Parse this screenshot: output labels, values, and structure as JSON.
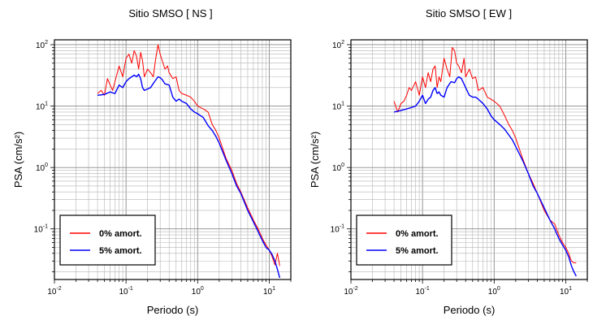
{
  "chart_data": [
    {
      "type": "line",
      "title": "Sitio SMSO [ NS ]",
      "xlabel": "Periodo (s)",
      "ylabel": "PSA (cm/s²)",
      "xscale": "log",
      "yscale": "log",
      "xlim": [
        0.01,
        20
      ],
      "ylim": [
        0.015,
        120
      ],
      "grid": true,
      "legend_position": "bottom-left",
      "x_tick_labels": [
        {
          "value": 0.01,
          "base": "10",
          "exp": "-2"
        },
        {
          "value": 0.1,
          "base": "10",
          "exp": "-1"
        },
        {
          "value": 1,
          "base": "10",
          "exp": "0"
        },
        {
          "value": 10,
          "base": "10",
          "exp": "1"
        }
      ],
      "y_tick_labels": [
        {
          "value": 0.1,
          "base": "10",
          "exp": "-1"
        },
        {
          "value": 1,
          "base": "10",
          "exp": "0"
        },
        {
          "value": 10,
          "base": "10",
          "exp": "1"
        },
        {
          "value": 100,
          "base": "10",
          "exp": "2"
        }
      ],
      "series": [
        {
          "name": "0% amort.",
          "color": "#ff0000",
          "x": [
            0.04,
            0.045,
            0.05,
            0.055,
            0.06,
            0.065,
            0.07,
            0.08,
            0.09,
            0.1,
            0.11,
            0.12,
            0.13,
            0.14,
            0.15,
            0.16,
            0.17,
            0.18,
            0.2,
            0.22,
            0.24,
            0.26,
            0.28,
            0.3,
            0.32,
            0.35,
            0.38,
            0.4,
            0.45,
            0.5,
            0.55,
            0.6,
            0.7,
            0.8,
            0.9,
            1.0,
            1.2,
            1.4,
            1.6,
            1.8,
            2.0,
            2.5,
            3.0,
            3.5,
            4.0,
            5.0,
            6.0,
            7.0,
            8.0,
            9.0,
            10.0,
            11.0,
            12.0,
            13.0,
            14.0
          ],
          "y": [
            16,
            18,
            15,
            28,
            22,
            18,
            25,
            45,
            30,
            60,
            70,
            50,
            80,
            65,
            40,
            75,
            55,
            30,
            40,
            35,
            30,
            60,
            100,
            70,
            55,
            40,
            45,
            35,
            28,
            30,
            18,
            16,
            15,
            14,
            12,
            10,
            9,
            8,
            5,
            4,
            3,
            1.4,
            0.9,
            0.55,
            0.4,
            0.22,
            0.14,
            0.1,
            0.07,
            0.055,
            0.045,
            0.035,
            0.026,
            0.04,
            0.025
          ]
        },
        {
          "name": "5% amort.",
          "color": "#0000ff",
          "x": [
            0.04,
            0.05,
            0.06,
            0.07,
            0.08,
            0.09,
            0.1,
            0.11,
            0.12,
            0.13,
            0.14,
            0.15,
            0.16,
            0.17,
            0.18,
            0.2,
            0.22,
            0.25,
            0.28,
            0.3,
            0.32,
            0.35,
            0.4,
            0.45,
            0.5,
            0.55,
            0.6,
            0.7,
            0.8,
            0.9,
            1.0,
            1.2,
            1.4,
            1.6,
            1.8,
            2.0,
            2.5,
            3.0,
            3.5,
            4.0,
            5.0,
            6.0,
            7.0,
            8.0,
            9.0,
            10.0,
            11.0,
            12.0,
            13.0,
            14.0
          ],
          "y": [
            15,
            15.5,
            17,
            16,
            22,
            20,
            25,
            28,
            30,
            32,
            30,
            33,
            28,
            20,
            18,
            19,
            20,
            25,
            30,
            29,
            27,
            23,
            22,
            14,
            12,
            13,
            12,
            11,
            9,
            8,
            7.5,
            6.5,
            4.8,
            4,
            3.2,
            2.5,
            1.3,
            0.8,
            0.5,
            0.38,
            0.2,
            0.13,
            0.09,
            0.065,
            0.05,
            0.045,
            0.038,
            0.03,
            0.022,
            0.016
          ]
        }
      ]
    },
    {
      "type": "line",
      "title": "Sitio SMSO [ EW ]",
      "xlabel": "Periodo (s)",
      "ylabel": "PSA (cm/s²)",
      "xscale": "log",
      "yscale": "log",
      "xlim": [
        0.01,
        20
      ],
      "ylim": [
        0.015,
        120
      ],
      "grid": true,
      "legend_position": "bottom-left",
      "x_tick_labels": [
        {
          "value": 0.01,
          "base": "10",
          "exp": "-2"
        },
        {
          "value": 0.1,
          "base": "10",
          "exp": "-1"
        },
        {
          "value": 1,
          "base": "10",
          "exp": "0"
        },
        {
          "value": 10,
          "base": "10",
          "exp": "1"
        }
      ],
      "y_tick_labels": [
        {
          "value": 0.1,
          "base": "10",
          "exp": "-1"
        },
        {
          "value": 1,
          "base": "10",
          "exp": "0"
        },
        {
          "value": 10,
          "base": "10",
          "exp": "1"
        },
        {
          "value": 100,
          "base": "10",
          "exp": "2"
        }
      ],
      "series": [
        {
          "name": "0% amort.",
          "color": "#ff0000",
          "x": [
            0.04,
            0.045,
            0.05,
            0.055,
            0.06,
            0.065,
            0.07,
            0.08,
            0.09,
            0.1,
            0.11,
            0.12,
            0.13,
            0.14,
            0.15,
            0.16,
            0.17,
            0.18,
            0.2,
            0.22,
            0.24,
            0.26,
            0.28,
            0.3,
            0.32,
            0.35,
            0.38,
            0.4,
            0.45,
            0.5,
            0.55,
            0.6,
            0.7,
            0.8,
            0.9,
            1.0,
            1.2,
            1.4,
            1.6,
            1.8,
            2.0,
            2.5,
            3.0,
            3.5,
            4.0,
            5.0,
            6.0,
            7.0,
            8.0,
            9.0,
            10.0,
            11.0,
            12.0,
            13.0,
            14.0
          ],
          "y": [
            12,
            8,
            11,
            12,
            15,
            20,
            18,
            25,
            15,
            30,
            20,
            35,
            25,
            40,
            45,
            20,
            30,
            25,
            60,
            40,
            30,
            90,
            80,
            50,
            45,
            35,
            60,
            30,
            40,
            28,
            30,
            18,
            20,
            14,
            13,
            12,
            10,
            7,
            5,
            4,
            3,
            1.4,
            0.8,
            0.55,
            0.38,
            0.2,
            0.14,
            0.12,
            0.08,
            0.06,
            0.05,
            0.04,
            0.03,
            0.028,
            0.028
          ]
        },
        {
          "name": "5% amort.",
          "color": "#0000ff",
          "x": [
            0.04,
            0.05,
            0.06,
            0.07,
            0.08,
            0.09,
            0.1,
            0.11,
            0.12,
            0.13,
            0.14,
            0.15,
            0.16,
            0.17,
            0.18,
            0.2,
            0.22,
            0.25,
            0.28,
            0.3,
            0.32,
            0.35,
            0.4,
            0.45,
            0.5,
            0.55,
            0.6,
            0.7,
            0.8,
            0.9,
            1.0,
            1.2,
            1.4,
            1.6,
            1.8,
            2.0,
            2.5,
            3.0,
            3.5,
            4.0,
            5.0,
            6.0,
            7.0,
            8.0,
            9.0,
            10.0,
            11.0,
            12.0,
            13.0,
            14.0
          ],
          "y": [
            8,
            8.5,
            9,
            9.5,
            10,
            12,
            15,
            11,
            13,
            14,
            18,
            20,
            16,
            17,
            15,
            14,
            20,
            25,
            24,
            28,
            30,
            28,
            20,
            15,
            14,
            14,
            13,
            11,
            9,
            7,
            6,
            5,
            4.2,
            3.4,
            2.8,
            2.2,
            1.3,
            0.8,
            0.5,
            0.38,
            0.22,
            0.14,
            0.1,
            0.07,
            0.055,
            0.045,
            0.035,
            0.025,
            0.02,
            0.017
          ]
        }
      ]
    }
  ]
}
